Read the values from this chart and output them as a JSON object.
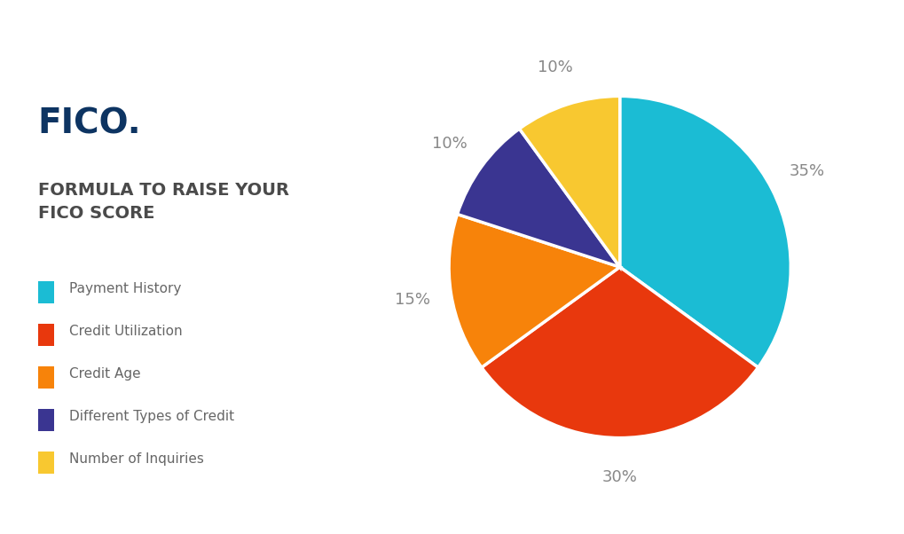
{
  "title_fico": "FICO.",
  "title_formula": "FORMULA TO RAISE YOUR\nFICO SCORE",
  "slices": [
    35,
    30,
    15,
    10,
    10
  ],
  "labels": [
    "35%",
    "30%",
    "15%",
    "10%",
    "10%"
  ],
  "legend_labels": [
    "Payment History",
    "Credit Utilization",
    "Credit Age",
    "Different Types of Credit",
    "Number of Inquiries"
  ],
  "colors": [
    "#1BBCD4",
    "#E8380D",
    "#F7830A",
    "#3A3591",
    "#F8C830"
  ],
  "startangle": 90,
  "background_color": "#FFFFFF",
  "fico_color": "#0D3462",
  "title_color": "#4A4A4A",
  "label_color": "#888888",
  "legend_text_color": "#666666"
}
